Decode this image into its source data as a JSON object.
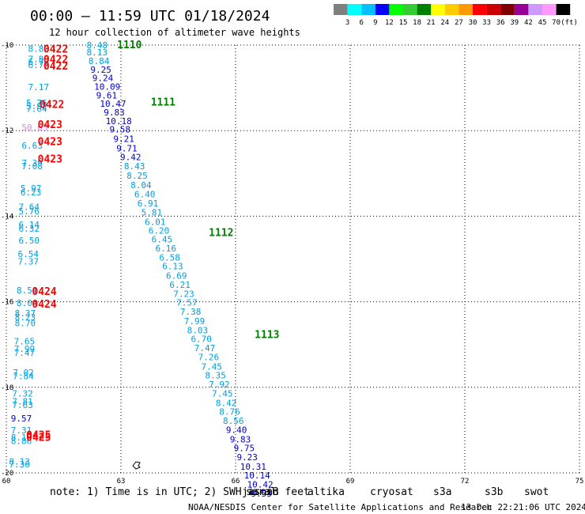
{
  "chart_data": {
    "type": "scatter",
    "title": "00:00 – 11:59 UTC 01/18/2024",
    "subtitle": "12 hour collection of altimeter wave heights",
    "xlim": [
      60,
      75
    ],
    "ylim": [
      -20,
      -10
    ],
    "x_ticks": [
      "60",
      "63",
      "66",
      "69",
      "72",
      "75"
    ],
    "y_ticks": [
      "-10",
      "-12",
      "-14",
      "-16",
      "-18",
      "-20"
    ],
    "grid": true,
    "color_scale": {
      "unit": "(ft)",
      "labels": [
        "3",
        "6",
        "9",
        "12",
        "15",
        "18",
        "21",
        "24",
        "27",
        "30",
        "33",
        "36",
        "39",
        "42",
        "45",
        "70"
      ],
      "colors": [
        "#7f7f7f",
        "#00ffff",
        "#00bfff",
        "#0000ff",
        "#00ff00",
        "#33cc33",
        "#008000",
        "#ffff00",
        "#ffcc00",
        "#ff9900",
        "#ff0000",
        "#cc0000",
        "#800000",
        "#990099",
        "#cc99ff",
        "#ff99ff",
        "#000000"
      ]
    },
    "series": [
      {
        "name": "jason3",
        "color": "#008000",
        "track_labels": [
          {
            "text": "1110",
            "x": 62.9,
            "y": -9.98
          },
          {
            "text": "1111",
            "x": 63.78,
            "y": -11.32
          },
          {
            "text": "1112",
            "x": 65.3,
            "y": -14.37
          },
          {
            "text": "1113",
            "x": 66.5,
            "y": -16.76
          }
        ],
        "points": [
          {
            "x": 62.1,
            "y": -10.0,
            "v": "8.48",
            "c": "#00a0e0"
          },
          {
            "x": 62.1,
            "y": -10.17,
            "v": "8.13",
            "c": "#00a0e0"
          },
          {
            "x": 62.15,
            "y": -10.37,
            "v": "8.84",
            "c": "#00a0e0"
          },
          {
            "x": 62.2,
            "y": -10.57,
            "v": "9.25",
            "c": "#0000cc"
          },
          {
            "x": 62.25,
            "y": -10.77,
            "v": "9.24",
            "c": "#0000cc"
          },
          {
            "x": 62.3,
            "y": -10.97,
            "v": "10.09",
            "c": "#0000cc"
          },
          {
            "x": 62.35,
            "y": -11.17,
            "v": "9.61",
            "c": "#0000cc"
          },
          {
            "x": 62.45,
            "y": -11.37,
            "v": "10.47",
            "c": "#0000cc"
          },
          {
            "x": 62.55,
            "y": -11.57,
            "v": "9.83",
            "c": "#0000cc"
          },
          {
            "x": 62.6,
            "y": -11.77,
            "v": "10.18",
            "c": "#0000cc"
          },
          {
            "x": 62.7,
            "y": -11.97,
            "v": "9.58",
            "c": "#0000cc"
          },
          {
            "x": 62.8,
            "y": -12.19,
            "v": "9.21",
            "c": "#0000cc"
          },
          {
            "x": 62.88,
            "y": -12.41,
            "v": "9.71",
            "c": "#0000cc"
          },
          {
            "x": 62.98,
            "y": -12.62,
            "v": "9.42",
            "c": "#0000cc"
          },
          {
            "x": 63.08,
            "y": -12.83,
            "v": "8.43",
            "c": "#00a0e0"
          },
          {
            "x": 63.15,
            "y": -13.05,
            "v": "8.25",
            "c": "#00a0e0"
          },
          {
            "x": 63.25,
            "y": -13.27,
            "v": "8.04",
            "c": "#00a0e0"
          },
          {
            "x": 63.35,
            "y": -13.48,
            "v": "6.40",
            "c": "#00a0e0"
          },
          {
            "x": 63.43,
            "y": -13.7,
            "v": "6.91",
            "c": "#00a0e0"
          },
          {
            "x": 63.53,
            "y": -13.91,
            "v": "5.81",
            "c": "#00a0e0"
          },
          {
            "x": 63.62,
            "y": -14.13,
            "v": "6.01",
            "c": "#00a0e0"
          },
          {
            "x": 63.72,
            "y": -14.33,
            "v": "6.20",
            "c": "#00a0e0"
          },
          {
            "x": 63.8,
            "y": -14.54,
            "v": "6.45",
            "c": "#00a0e0"
          },
          {
            "x": 63.9,
            "y": -14.75,
            "v": "6.16",
            "c": "#00a0e0"
          },
          {
            "x": 64.0,
            "y": -14.96,
            "v": "6.58",
            "c": "#00a0e0"
          },
          {
            "x": 64.08,
            "y": -15.17,
            "v": "6.13",
            "c": "#00a0e0"
          },
          {
            "x": 64.18,
            "y": -15.39,
            "v": "6.69",
            "c": "#00a0e0"
          },
          {
            "x": 64.27,
            "y": -15.6,
            "v": "6.21",
            "c": "#00a0e0"
          },
          {
            "x": 64.37,
            "y": -15.81,
            "v": "7.23",
            "c": "#00a0e0"
          },
          {
            "x": 64.45,
            "y": -16.02,
            "v": "7.57",
            "c": "#00a0e0"
          },
          {
            "x": 64.55,
            "y": -16.23,
            "v": "7.38",
            "c": "#00a0e0"
          },
          {
            "x": 64.65,
            "y": -16.45,
            "v": "7.99",
            "c": "#00a0e0"
          },
          {
            "x": 64.73,
            "y": -16.66,
            "v": "8.03",
            "c": "#00a0e0"
          },
          {
            "x": 64.83,
            "y": -16.87,
            "v": "6.70",
            "c": "#00a0e0"
          },
          {
            "x": 64.92,
            "y": -17.08,
            "v": "7.47",
            "c": "#00a0e0"
          },
          {
            "x": 65.02,
            "y": -17.29,
            "v": "7.26",
            "c": "#00a0e0"
          },
          {
            "x": 65.1,
            "y": -17.51,
            "v": "7.45",
            "c": "#00a0e0"
          },
          {
            "x": 65.2,
            "y": -17.72,
            "v": "8.35",
            "c": "#00a0e0"
          },
          {
            "x": 65.3,
            "y": -17.93,
            "v": "7.92",
            "c": "#00a0e0"
          },
          {
            "x": 65.38,
            "y": -18.14,
            "v": "7.45",
            "c": "#00a0e0"
          },
          {
            "x": 65.48,
            "y": -18.36,
            "v": "8.42",
            "c": "#00a0e0"
          },
          {
            "x": 65.57,
            "y": -18.57,
            "v": "8.76",
            "c": "#00a0e0"
          },
          {
            "x": 65.67,
            "y": -18.78,
            "v": "8.56",
            "c": "#00a0e0"
          },
          {
            "x": 65.75,
            "y": -18.99,
            "v": "9.40",
            "c": "#0000cc"
          },
          {
            "x": 65.85,
            "y": -19.21,
            "v": "9.83",
            "c": "#0000cc"
          },
          {
            "x": 65.95,
            "y": -19.42,
            "v": "9.75",
            "c": "#0000cc"
          },
          {
            "x": 66.03,
            "y": -19.63,
            "v": "9.23",
            "c": "#0000cc"
          },
          {
            "x": 66.12,
            "y": -19.85,
            "v": "10.31",
            "c": "#0000cc"
          },
          {
            "x": 66.22,
            "y": -20.06,
            "v": "10.14",
            "c": "#0000cc"
          },
          {
            "x": 66.3,
            "y": -20.27,
            "v": "10.42",
            "c": "#0000cc"
          },
          {
            "x": 66.4,
            "y": -20.48,
            "v": "9.53",
            "c": "#0000cc"
          }
        ]
      },
      {
        "name": "cryosat",
        "color": "#ff0000",
        "track_labels": [
          {
            "text": "0422",
            "x": 60.97,
            "y": -10.08
          },
          {
            "text": "0422",
            "x": 60.97,
            "y": -10.32
          },
          {
            "text": "0422",
            "x": 60.97,
            "y": -10.48
          },
          {
            "text": "0422",
            "x": 60.87,
            "y": -11.38
          },
          {
            "text": "0423",
            "x": 60.82,
            "y": -11.85
          },
          {
            "text": "0423",
            "x": 60.82,
            "y": -12.25
          },
          {
            "text": "0423",
            "x": 60.82,
            "y": -12.65
          },
          {
            "text": "0424",
            "x": 60.67,
            "y": -15.75
          },
          {
            "text": "0424",
            "x": 60.67,
            "y": -16.04
          },
          {
            "text": "0425",
            "x": 60.52,
            "y": -19.1
          },
          {
            "text": "0425",
            "x": 60.52,
            "y": -19.16
          }
        ],
        "points": [
          {
            "x": 60.57,
            "y": -10.08,
            "v": "8.82",
            "c": "#00a0e0"
          },
          {
            "x": 60.57,
            "y": -10.32,
            "v": "7.88",
            "c": "#00a0e0"
          },
          {
            "x": 60.57,
            "y": -10.39,
            "v": "6.77",
            "c": "#00a0e0"
          },
          {
            "x": 60.57,
            "y": -10.46,
            "v": "6.77",
            "c": "#00a0e0"
          },
          {
            "x": 60.57,
            "y": -10.98,
            "v": "7.17",
            "c": "#00a0e0"
          },
          {
            "x": 60.52,
            "y": -11.35,
            "v": "5.76",
            "c": "#00a0e0"
          },
          {
            "x": 60.52,
            "y": -11.42,
            "v": "5.92",
            "c": "#00a0e0"
          },
          {
            "x": 60.52,
            "y": -11.49,
            "v": "7.04",
            "c": "#00a0e0"
          },
          {
            "x": 60.4,
            "y": -11.92,
            "v": "50.65",
            "c": "#dd88dd"
          },
          {
            "x": 60.4,
            "y": -12.35,
            "v": "6.63",
            "c": "#00a0e0"
          },
          {
            "x": 60.4,
            "y": -12.75,
            "v": "7.39",
            "c": "#00a0e0"
          },
          {
            "x": 60.4,
            "y": -12.83,
            "v": "7.08",
            "c": "#00a0e0"
          },
          {
            "x": 60.37,
            "y": -13.35,
            "v": "5.97",
            "c": "#00a0e0"
          },
          {
            "x": 60.37,
            "y": -13.44,
            "v": "6.23",
            "c": "#00a0e0"
          },
          {
            "x": 60.32,
            "y": -13.78,
            "v": "7.64",
            "c": "#00a0e0"
          },
          {
            "x": 60.32,
            "y": -13.88,
            "v": "5.76",
            "c": "#00a0e0"
          },
          {
            "x": 60.32,
            "y": -14.2,
            "v": "6.14",
            "c": "#00a0e0"
          },
          {
            "x": 60.32,
            "y": -14.29,
            "v": "6.32",
            "c": "#00a0e0"
          },
          {
            "x": 60.32,
            "y": -14.57,
            "v": "6.50",
            "c": "#00a0e0"
          },
          {
            "x": 60.3,
            "y": -14.88,
            "v": "6.54",
            "c": "#00a0e0"
          },
          {
            "x": 60.3,
            "y": -15.06,
            "v": "7.37",
            "c": "#00a0e0"
          },
          {
            "x": 60.27,
            "y": -15.73,
            "v": "8.51",
            "c": "#00a0e0"
          },
          {
            "x": 60.27,
            "y": -16.03,
            "v": "8.04",
            "c": "#00a0e0"
          },
          {
            "x": 60.22,
            "y": -16.27,
            "v": "8.37",
            "c": "#00a0e0"
          },
          {
            "x": 60.22,
            "y": -16.36,
            "v": "8.23",
            "c": "#00a0e0"
          },
          {
            "x": 60.22,
            "y": -16.5,
            "v": "8.70",
            "c": "#00a0e0"
          },
          {
            "x": 60.2,
            "y": -16.92,
            "v": "7.65",
            "c": "#00a0e0"
          },
          {
            "x": 60.2,
            "y": -17.1,
            "v": "7.99",
            "c": "#00a0e0"
          },
          {
            "x": 60.2,
            "y": -17.19,
            "v": "7.47",
            "c": "#00a0e0"
          },
          {
            "x": 60.17,
            "y": -17.65,
            "v": "7.02",
            "c": "#00a0e0"
          },
          {
            "x": 60.17,
            "y": -17.74,
            "v": "7.84",
            "c": "#00a0e0"
          },
          {
            "x": 60.15,
            "y": -18.14,
            "v": "7.32",
            "c": "#00a0e0"
          },
          {
            "x": 60.15,
            "y": -18.33,
            "v": "7.81",
            "c": "#00a0e0"
          },
          {
            "x": 60.15,
            "y": -18.41,
            "v": "7.63",
            "c": "#00a0e0"
          },
          {
            "x": 60.12,
            "y": -18.72,
            "v": "9.57",
            "c": "#0000cc"
          },
          {
            "x": 60.12,
            "y": -19.0,
            "v": "7.31",
            "c": "#00a0e0"
          },
          {
            "x": 60.12,
            "y": -19.17,
            "v": "8.15",
            "c": "#00a0e0"
          },
          {
            "x": 60.12,
            "y": -19.25,
            "v": "8.86",
            "c": "#00a0e0"
          },
          {
            "x": 60.07,
            "y": -19.73,
            "v": "8.13",
            "c": "#00a0e0"
          },
          {
            "x": 60.07,
            "y": -19.8,
            "v": "7.36",
            "c": "#00a0e0"
          }
        ]
      }
    ],
    "legend": {
      "placement": "bottom",
      "entries": [
        {
          "name": "jason3",
          "color": "#008000"
        },
        {
          "name": "saral",
          "color": "#008080"
        },
        {
          "name": "altika",
          "color": "#ff8c00"
        },
        {
          "name": "cryosat",
          "color": "#ff0000"
        },
        {
          "name": "s3a",
          "color": "#b22222"
        },
        {
          "name": "s3b",
          "color": "#b0a0e8"
        },
        {
          "name": "swot",
          "color": "#ff88ff"
        }
      ]
    }
  },
  "note_text": "note:  1) Time is in UTC;  2) SWH is in feet",
  "credit_left": "NOAA/NESDIS Center for Satellite Applications and Research",
  "credit_right": "13 Dec 22:21:06 UTC 2024"
}
